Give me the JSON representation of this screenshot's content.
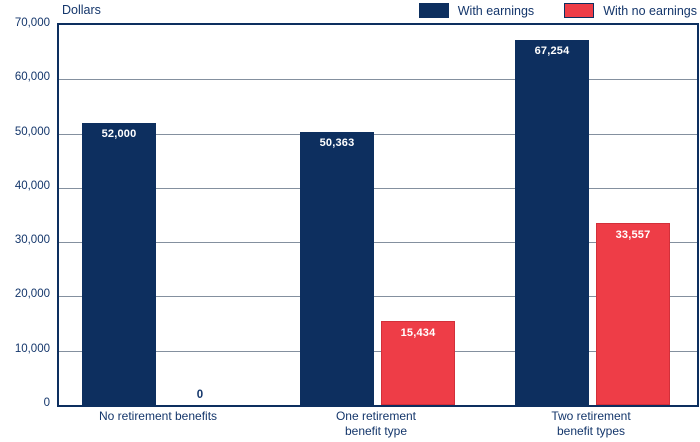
{
  "chart_data": {
    "type": "bar",
    "title": "",
    "ylabel": "Dollars",
    "xlabel": "",
    "categories": [
      "No retirement benefits",
      "One retirement benefit type",
      "Two retirement benefit types"
    ],
    "categories_lines": [
      [
        "No retirement benefits"
      ],
      [
        "One retirement",
        "benefit type"
      ],
      [
        "Two retirement",
        "benefit types"
      ]
    ],
    "series": [
      {
        "name": "With earnings",
        "color": "#0d2f5f",
        "values": [
          52000,
          50363,
          67254
        ],
        "labels": [
          "52,000",
          "50,363",
          "67,254"
        ]
      },
      {
        "name": "With no earnings",
        "color": "#ee3d47",
        "values": [
          0,
          15434,
          33557
        ],
        "labels": [
          "0",
          "15,434",
          "33,557"
        ]
      }
    ],
    "yticks": [
      "0",
      "10,000",
      "20,000",
      "30,000",
      "40,000",
      "50,000",
      "60,000",
      "70,000"
    ],
    "ylim": [
      0,
      70000
    ],
    "grid": true,
    "legend_position": "top-right"
  },
  "colors": {
    "bar_with_earnings": "#0d2f5f",
    "bar_with_no_earnings": "#ee3d47",
    "gridline": "#84909f",
    "text": "#14366b",
    "background": "#ffffff"
  }
}
